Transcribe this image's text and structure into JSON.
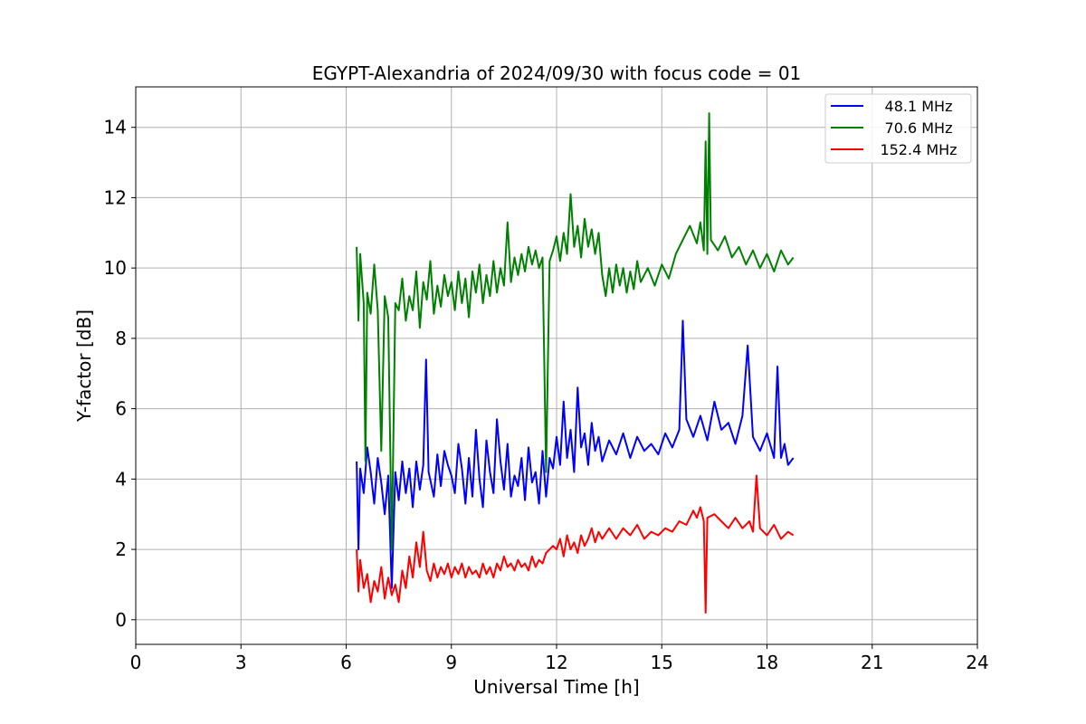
{
  "chart_data": {
    "type": "line",
    "title": "EGYPT-Alexandria of 2024/09/30 with focus code = 01",
    "xlabel": "Universal Time [h]",
    "ylabel": "Y-factor [dB]",
    "xlim": [
      0,
      24
    ],
    "ylim": [
      -0.7,
      15.15
    ],
    "xticks": [
      0,
      3,
      6,
      9,
      12,
      15,
      18,
      21,
      24
    ],
    "yticks": [
      0,
      2,
      4,
      6,
      8,
      10,
      12,
      14
    ],
    "grid": true,
    "legend_position": "top-right",
    "series": [
      {
        "name": "48.1 MHz",
        "color": "#0000ff",
        "points": [
          [
            6.3,
            4.5
          ],
          [
            6.35,
            2.0
          ],
          [
            6.4,
            4.3
          ],
          [
            6.5,
            3.6
          ],
          [
            6.6,
            4.9
          ],
          [
            6.7,
            4.2
          ],
          [
            6.8,
            3.3
          ],
          [
            6.9,
            4.6
          ],
          [
            7.0,
            3.9
          ],
          [
            7.1,
            3.0
          ],
          [
            7.2,
            4.1
          ],
          [
            7.3,
            0.9
          ],
          [
            7.4,
            4.2
          ],
          [
            7.5,
            3.4
          ],
          [
            7.6,
            4.5
          ],
          [
            7.7,
            3.6
          ],
          [
            7.8,
            4.3
          ],
          [
            7.9,
            3.2
          ],
          [
            8.0,
            4.5
          ],
          [
            8.1,
            3.7
          ],
          [
            8.2,
            4.4
          ],
          [
            8.28,
            7.4
          ],
          [
            8.35,
            4.2
          ],
          [
            8.5,
            3.5
          ],
          [
            8.6,
            4.7
          ],
          [
            8.7,
            3.8
          ],
          [
            8.8,
            4.8
          ],
          [
            8.9,
            4.4
          ],
          [
            9.0,
            4.1
          ],
          [
            9.1,
            3.6
          ],
          [
            9.2,
            5.0
          ],
          [
            9.3,
            4.3
          ],
          [
            9.4,
            3.3
          ],
          [
            9.5,
            4.6
          ],
          [
            9.6,
            3.5
          ],
          [
            9.7,
            5.4
          ],
          [
            9.8,
            4.0
          ],
          [
            9.9,
            3.2
          ],
          [
            10.0,
            5.1
          ],
          [
            10.1,
            4.2
          ],
          [
            10.2,
            3.6
          ],
          [
            10.3,
            5.7
          ],
          [
            10.4,
            4.5
          ],
          [
            10.5,
            3.7
          ],
          [
            10.6,
            5.0
          ],
          [
            10.7,
            3.5
          ],
          [
            10.8,
            4.1
          ],
          [
            10.9,
            3.8
          ],
          [
            11.0,
            4.6
          ],
          [
            11.1,
            3.4
          ],
          [
            11.2,
            4.9
          ],
          [
            11.3,
            3.9
          ],
          [
            11.4,
            4.2
          ],
          [
            11.5,
            3.3
          ],
          [
            11.6,
            4.8
          ],
          [
            11.7,
            3.5
          ],
          [
            11.8,
            4.6
          ],
          [
            11.9,
            4.3
          ],
          [
            12.0,
            5.2
          ],
          [
            12.1,
            4.4
          ],
          [
            12.2,
            6.2
          ],
          [
            12.3,
            4.6
          ],
          [
            12.4,
            5.4
          ],
          [
            12.5,
            4.2
          ],
          [
            12.6,
            6.6
          ],
          [
            12.7,
            4.9
          ],
          [
            12.8,
            5.3
          ],
          [
            12.9,
            4.4
          ],
          [
            13.0,
            5.6
          ],
          [
            13.1,
            4.8
          ],
          [
            13.2,
            5.2
          ],
          [
            13.3,
            4.5
          ],
          [
            13.5,
            5.1
          ],
          [
            13.7,
            4.7
          ],
          [
            13.9,
            5.3
          ],
          [
            14.1,
            4.6
          ],
          [
            14.3,
            5.2
          ],
          [
            14.5,
            4.8
          ],
          [
            14.7,
            5.0
          ],
          [
            14.9,
            4.7
          ],
          [
            15.1,
            5.3
          ],
          [
            15.3,
            4.9
          ],
          [
            15.5,
            5.4
          ],
          [
            15.6,
            8.5
          ],
          [
            15.7,
            5.7
          ],
          [
            15.9,
            5.2
          ],
          [
            16.1,
            5.8
          ],
          [
            16.3,
            5.1
          ],
          [
            16.5,
            6.2
          ],
          [
            16.7,
            5.4
          ],
          [
            16.9,
            5.6
          ],
          [
            17.1,
            5.0
          ],
          [
            17.3,
            5.8
          ],
          [
            17.45,
            7.8
          ],
          [
            17.6,
            5.2
          ],
          [
            17.8,
            4.8
          ],
          [
            18.0,
            5.3
          ],
          [
            18.2,
            4.6
          ],
          [
            18.3,
            7.2
          ],
          [
            18.4,
            4.6
          ],
          [
            18.5,
            5.0
          ],
          [
            18.6,
            4.4
          ],
          [
            18.75,
            4.6
          ]
        ]
      },
      {
        "name": "70.6 MHz",
        "color": "#008000",
        "points": [
          [
            6.3,
            10.6
          ],
          [
            6.35,
            8.5
          ],
          [
            6.4,
            10.4
          ],
          [
            6.5,
            9.0
          ],
          [
            6.55,
            4.5
          ],
          [
            6.6,
            9.3
          ],
          [
            6.7,
            8.7
          ],
          [
            6.8,
            10.1
          ],
          [
            6.9,
            8.8
          ],
          [
            7.0,
            4.8
          ],
          [
            7.1,
            9.2
          ],
          [
            7.2,
            8.6
          ],
          [
            7.3,
            2.0
          ],
          [
            7.4,
            9.0
          ],
          [
            7.5,
            8.8
          ],
          [
            7.6,
            9.7
          ],
          [
            7.7,
            8.5
          ],
          [
            7.8,
            9.2
          ],
          [
            7.9,
            8.8
          ],
          [
            8.0,
            9.9
          ],
          [
            8.1,
            8.3
          ],
          [
            8.2,
            9.6
          ],
          [
            8.3,
            9.1
          ],
          [
            8.4,
            10.2
          ],
          [
            8.5,
            8.7
          ],
          [
            8.6,
            9.5
          ],
          [
            8.7,
            8.9
          ],
          [
            8.8,
            9.8
          ],
          [
            8.9,
            9.2
          ],
          [
            9.0,
            9.6
          ],
          [
            9.1,
            8.8
          ],
          [
            9.2,
            9.9
          ],
          [
            9.3,
            9.0
          ],
          [
            9.4,
            9.7
          ],
          [
            9.5,
            8.6
          ],
          [
            9.6,
            9.9
          ],
          [
            9.7,
            9.3
          ],
          [
            9.8,
            10.1
          ],
          [
            9.9,
            9.0
          ],
          [
            10.0,
            9.8
          ],
          [
            10.1,
            9.2
          ],
          [
            10.2,
            10.2
          ],
          [
            10.3,
            9.3
          ],
          [
            10.4,
            10.0
          ],
          [
            10.5,
            9.5
          ],
          [
            10.6,
            11.3
          ],
          [
            10.7,
            9.6
          ],
          [
            10.8,
            10.3
          ],
          [
            10.9,
            9.8
          ],
          [
            11.0,
            10.4
          ],
          [
            11.1,
            9.9
          ],
          [
            11.2,
            10.6
          ],
          [
            11.3,
            10.1
          ],
          [
            11.4,
            10.5
          ],
          [
            11.5,
            10.0
          ],
          [
            11.6,
            10.3
          ],
          [
            11.7,
            4.2
          ],
          [
            11.8,
            10.2
          ],
          [
            11.9,
            10.5
          ],
          [
            12.0,
            10.9
          ],
          [
            12.1,
            10.2
          ],
          [
            12.2,
            11.0
          ],
          [
            12.3,
            10.4
          ],
          [
            12.4,
            12.1
          ],
          [
            12.5,
            10.6
          ],
          [
            12.6,
            11.2
          ],
          [
            12.7,
            10.3
          ],
          [
            12.8,
            11.4
          ],
          [
            12.9,
            10.6
          ],
          [
            13.0,
            11.1
          ],
          [
            13.1,
            10.4
          ],
          [
            13.2,
            11.0
          ],
          [
            13.3,
            9.8
          ],
          [
            13.4,
            9.2
          ],
          [
            13.5,
            10.0
          ],
          [
            13.6,
            9.3
          ],
          [
            13.7,
            10.1
          ],
          [
            13.8,
            9.5
          ],
          [
            13.9,
            10.0
          ],
          [
            14.0,
            9.3
          ],
          [
            14.1,
            9.9
          ],
          [
            14.2,
            9.4
          ],
          [
            14.3,
            10.2
          ],
          [
            14.4,
            9.6
          ],
          [
            14.6,
            10.0
          ],
          [
            14.8,
            9.5
          ],
          [
            15.0,
            10.1
          ],
          [
            15.2,
            9.7
          ],
          [
            15.4,
            10.4
          ],
          [
            15.6,
            10.8
          ],
          [
            15.8,
            11.2
          ],
          [
            16.0,
            10.7
          ],
          [
            16.1,
            11.3
          ],
          [
            16.2,
            10.5
          ],
          [
            16.25,
            13.6
          ],
          [
            16.3,
            10.4
          ],
          [
            16.35,
            14.4
          ],
          [
            16.4,
            10.8
          ],
          [
            16.6,
            10.5
          ],
          [
            16.8,
            10.9
          ],
          [
            17.0,
            10.3
          ],
          [
            17.2,
            10.6
          ],
          [
            17.4,
            10.1
          ],
          [
            17.6,
            10.5
          ],
          [
            17.8,
            10.0
          ],
          [
            18.0,
            10.4
          ],
          [
            18.2,
            9.9
          ],
          [
            18.4,
            10.5
          ],
          [
            18.6,
            10.1
          ],
          [
            18.75,
            10.3
          ]
        ]
      },
      {
        "name": "152.4 MHz",
        "color": "#ff0000",
        "points": [
          [
            6.3,
            2.0
          ],
          [
            6.35,
            0.8
          ],
          [
            6.4,
            1.7
          ],
          [
            6.5,
            0.9
          ],
          [
            6.6,
            1.3
          ],
          [
            6.7,
            0.5
          ],
          [
            6.8,
            1.1
          ],
          [
            6.9,
            0.8
          ],
          [
            7.0,
            1.5
          ],
          [
            7.1,
            0.6
          ],
          [
            7.2,
            1.2
          ],
          [
            7.3,
            0.7
          ],
          [
            7.4,
            1.0
          ],
          [
            7.5,
            0.5
          ],
          [
            7.6,
            1.4
          ],
          [
            7.7,
            0.9
          ],
          [
            7.8,
            1.8
          ],
          [
            7.9,
            1.2
          ],
          [
            8.0,
            2.2
          ],
          [
            8.1,
            1.5
          ],
          [
            8.2,
            2.5
          ],
          [
            8.3,
            1.4
          ],
          [
            8.4,
            1.1
          ],
          [
            8.5,
            1.6
          ],
          [
            8.6,
            1.2
          ],
          [
            8.7,
            1.5
          ],
          [
            8.8,
            1.3
          ],
          [
            8.9,
            1.6
          ],
          [
            9.0,
            1.2
          ],
          [
            9.1,
            1.5
          ],
          [
            9.2,
            1.3
          ],
          [
            9.3,
            1.6
          ],
          [
            9.4,
            1.2
          ],
          [
            9.5,
            1.5
          ],
          [
            9.6,
            1.3
          ],
          [
            9.7,
            1.4
          ],
          [
            9.8,
            1.2
          ],
          [
            9.9,
            1.6
          ],
          [
            10.0,
            1.3
          ],
          [
            10.1,
            1.5
          ],
          [
            10.2,
            1.2
          ],
          [
            10.3,
            1.6
          ],
          [
            10.4,
            1.4
          ],
          [
            10.5,
            1.8
          ],
          [
            10.6,
            1.5
          ],
          [
            10.7,
            1.6
          ],
          [
            10.8,
            1.4
          ],
          [
            10.9,
            1.7
          ],
          [
            11.0,
            1.5
          ],
          [
            11.1,
            1.6
          ],
          [
            11.2,
            1.4
          ],
          [
            11.3,
            1.8
          ],
          [
            11.4,
            1.5
          ],
          [
            11.5,
            1.7
          ],
          [
            11.6,
            1.6
          ],
          [
            11.7,
            1.9
          ],
          [
            11.8,
            2.0
          ],
          [
            11.9,
            2.1
          ],
          [
            12.0,
            2.0
          ],
          [
            12.1,
            2.3
          ],
          [
            12.2,
            1.8
          ],
          [
            12.3,
            2.4
          ],
          [
            12.4,
            2.0
          ],
          [
            12.5,
            2.2
          ],
          [
            12.6,
            1.9
          ],
          [
            12.7,
            2.4
          ],
          [
            12.8,
            2.1
          ],
          [
            12.9,
            2.3
          ],
          [
            13.0,
            2.6
          ],
          [
            13.1,
            2.2
          ],
          [
            13.2,
            2.5
          ],
          [
            13.3,
            2.3
          ],
          [
            13.5,
            2.6
          ],
          [
            13.7,
            2.3
          ],
          [
            13.9,
            2.6
          ],
          [
            14.1,
            2.4
          ],
          [
            14.3,
            2.7
          ],
          [
            14.5,
            2.3
          ],
          [
            14.7,
            2.5
          ],
          [
            14.9,
            2.4
          ],
          [
            15.1,
            2.6
          ],
          [
            15.3,
            2.5
          ],
          [
            15.5,
            2.8
          ],
          [
            15.7,
            2.7
          ],
          [
            15.9,
            3.1
          ],
          [
            16.0,
            2.9
          ],
          [
            16.1,
            3.2
          ],
          [
            16.2,
            2.8
          ],
          [
            16.25,
            0.2
          ],
          [
            16.3,
            2.9
          ],
          [
            16.5,
            3.0
          ],
          [
            16.7,
            2.8
          ],
          [
            16.9,
            2.6
          ],
          [
            17.1,
            2.9
          ],
          [
            17.3,
            2.6
          ],
          [
            17.5,
            2.8
          ],
          [
            17.6,
            2.5
          ],
          [
            17.7,
            4.1
          ],
          [
            17.8,
            2.6
          ],
          [
            18.0,
            2.4
          ],
          [
            18.2,
            2.7
          ],
          [
            18.4,
            2.3
          ],
          [
            18.6,
            2.5
          ],
          [
            18.75,
            2.4
          ]
        ]
      }
    ]
  }
}
